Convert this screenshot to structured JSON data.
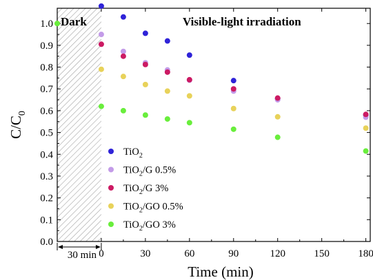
{
  "chart_data": {
    "type": "scatter",
    "xlabel": "Time (min)",
    "ylabel": "C/C0",
    "ylabel_main": "C/C",
    "ylabel_sub": "0",
    "xlim": [
      -30,
      183
    ],
    "ylim": [
      0,
      1.07
    ],
    "x_ticks": [
      0,
      30,
      60,
      90,
      120,
      150,
      180
    ],
    "y_ticks": [
      0.0,
      0.1,
      0.2,
      0.3,
      0.4,
      0.5,
      0.6,
      0.7,
      0.8,
      0.9,
      1.0
    ],
    "y_tick_labels": [
      "0.0",
      "0.1",
      "0.2",
      "0.3",
      "0.4",
      "0.5",
      "0.6",
      "0.7",
      "0.8",
      "0.9",
      "1.0"
    ],
    "dark_region": {
      "x_from": -30,
      "x_to": 0,
      "label": "Dark"
    },
    "dark_duration_label": "30 min",
    "annotation": "Visible-light irradiation",
    "legend_position": "lower-left",
    "series": [
      {
        "name": "TiO2",
        "name_main": "TiO",
        "name_sub": "2",
        "name_tail": "",
        "color": "#2f23d8",
        "points": [
          [
            0,
            1.08
          ],
          [
            15,
            1.03
          ],
          [
            30,
            0.955
          ],
          [
            45,
            0.92
          ],
          [
            60,
            0.855
          ],
          [
            90,
            0.738
          ],
          [
            120,
            0.655
          ],
          [
            180,
            0.58
          ]
        ]
      },
      {
        "name": "TiO2/G 0.5%",
        "name_main": "TiO",
        "name_sub": "2",
        "name_tail": "/G 0.5%",
        "color": "#c39be8",
        "points": [
          [
            0,
            0.95
          ],
          [
            15,
            0.872
          ],
          [
            30,
            0.82
          ],
          [
            45,
            0.787
          ],
          [
            60,
            0.74
          ],
          [
            90,
            0.69
          ],
          [
            120,
            0.65
          ],
          [
            180,
            0.57
          ]
        ]
      },
      {
        "name": "TiO2/G 3%",
        "name_main": "TiO",
        "name_sub": "2",
        "name_tail": "/G 3%",
        "color": "#cc1a63",
        "points": [
          [
            0,
            0.905
          ],
          [
            15,
            0.85
          ],
          [
            30,
            0.812
          ],
          [
            45,
            0.777
          ],
          [
            60,
            0.742
          ],
          [
            90,
            0.7
          ],
          [
            120,
            0.658
          ],
          [
            180,
            0.583
          ]
        ]
      },
      {
        "name": "TiO2/GO 0.5%",
        "name_main": "TiO",
        "name_sub": "2",
        "name_tail": "/GO 0.5%",
        "color": "#e8d25a",
        "points": [
          [
            -30,
            1.0
          ],
          [
            0,
            0.79
          ],
          [
            15,
            0.757
          ],
          [
            30,
            0.72
          ],
          [
            45,
            0.69
          ],
          [
            60,
            0.668
          ],
          [
            90,
            0.61
          ],
          [
            120,
            0.572
          ],
          [
            180,
            0.52
          ]
        ]
      },
      {
        "name": "TiO2/GO 3%",
        "name_main": "TiO",
        "name_sub": "2",
        "name_tail": "/GO 3%",
        "color": "#69ee3c",
        "points": [
          [
            -30,
            1.0
          ],
          [
            0,
            0.62
          ],
          [
            15,
            0.6
          ],
          [
            30,
            0.58
          ],
          [
            45,
            0.562
          ],
          [
            60,
            0.545
          ],
          [
            90,
            0.515
          ],
          [
            120,
            0.478
          ],
          [
            180,
            0.415
          ]
        ]
      }
    ]
  }
}
